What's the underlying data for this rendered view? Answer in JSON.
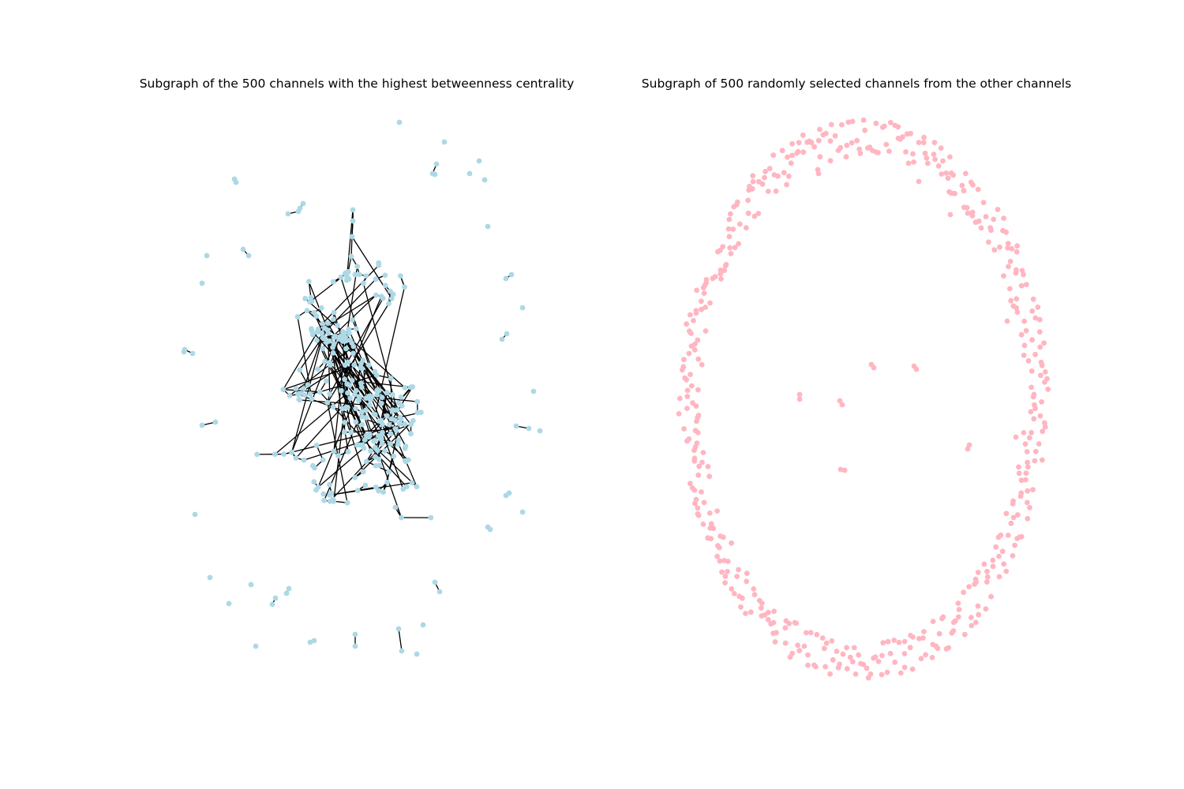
{
  "figure": {
    "left_panel": {
      "title": "Subgraph of the 500 channels with the highest betweenness centrality",
      "node_color": "#add8e6",
      "edge_color": "#000000"
    },
    "right_panel": {
      "title": "Subgraph of 500 randomly selected channels from the other channels",
      "node_color": "#ffb6c1",
      "edge_color": "#000000"
    },
    "background": "#ffffff"
  }
}
